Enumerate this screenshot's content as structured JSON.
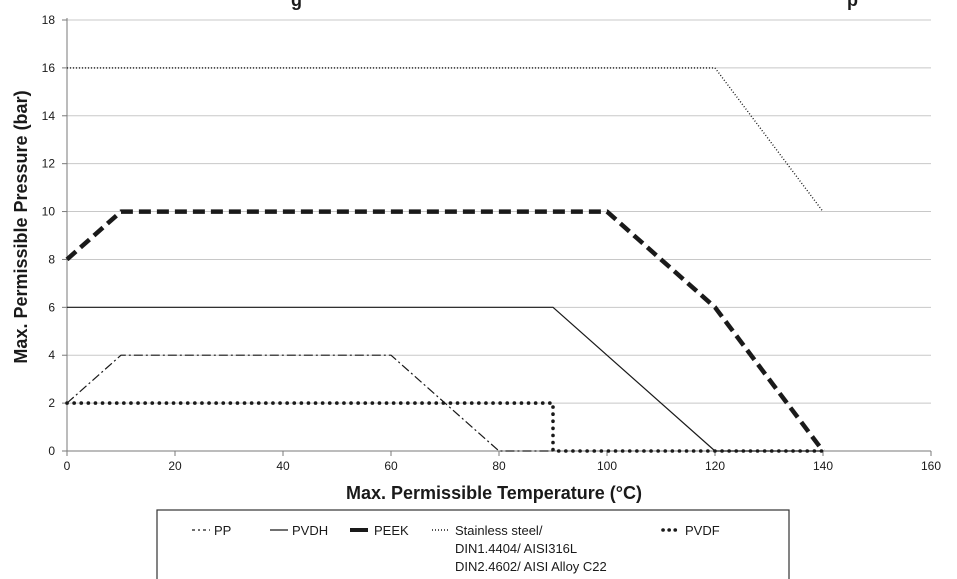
{
  "chart_data": {
    "type": "line",
    "title": "",
    "title_partial_visible": [
      {
        "text": "g",
        "pos": "left"
      },
      {
        "text": "p",
        "pos": "right"
      }
    ],
    "xlabel": "Max. Permissible Temperature (°C)",
    "ylabel": "Max. Permissible Pressure (bar)",
    "xlim": [
      0,
      160
    ],
    "ylim": [
      0,
      18
    ],
    "x_ticks": [
      0,
      20,
      40,
      60,
      80,
      100,
      120,
      140,
      160
    ],
    "y_ticks": [
      0,
      2,
      4,
      6,
      8,
      10,
      12,
      14,
      16,
      18
    ],
    "grid": "horizontal",
    "legend_placement": "bottom",
    "series": [
      {
        "name": "PP",
        "style": "dashdot",
        "color": "#1a1a1a",
        "points": [
          [
            0,
            2
          ],
          [
            10,
            4
          ],
          [
            60,
            4
          ],
          [
            80,
            0
          ],
          [
            90,
            0
          ]
        ]
      },
      {
        "name": "PVDH",
        "style": "solid",
        "color": "#1a1a1a",
        "points": [
          [
            0,
            6
          ],
          [
            90,
            6
          ],
          [
            120,
            0
          ],
          [
            140,
            0
          ]
        ]
      },
      {
        "name": "PEEK",
        "style": "heavy-dashed",
        "color": "#1a1a1a",
        "points": [
          [
            0,
            8
          ],
          [
            10,
            10
          ],
          [
            100,
            10
          ],
          [
            120,
            6
          ],
          [
            140,
            0
          ]
        ]
      },
      {
        "name": "Stainless steel/\nDIN1.4404/ AISI316L\nDIN2.4602/ AISI Alloy C22",
        "style": "dotted-fine",
        "color": "#1a1a1a",
        "points": [
          [
            0,
            16
          ],
          [
            120,
            16
          ],
          [
            140,
            10
          ]
        ]
      },
      {
        "name": "PVDF",
        "style": "dotted-round",
        "color": "#1a1a1a",
        "points": [
          [
            0,
            2
          ],
          [
            90,
            2
          ],
          [
            90,
            0
          ],
          [
            140,
            0
          ]
        ]
      }
    ]
  }
}
